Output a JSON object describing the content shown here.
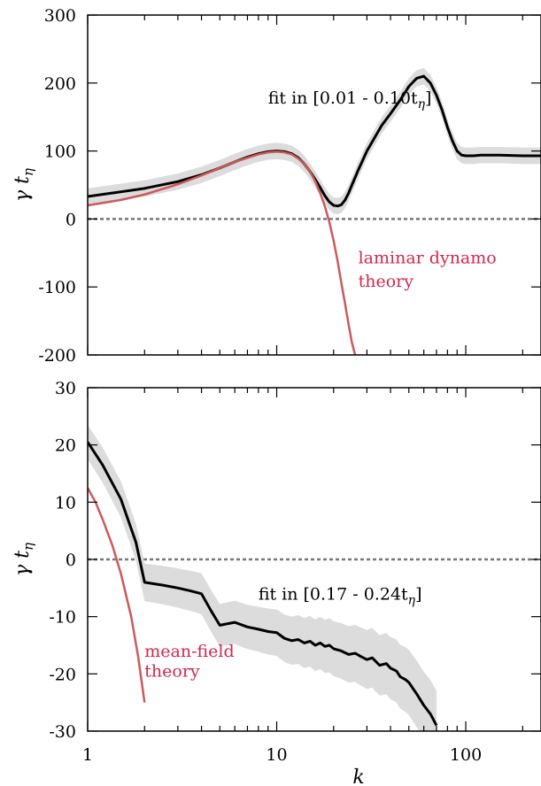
{
  "colors": {
    "black_curve": "#000000",
    "theory_curve": "#cc5a5a",
    "band": "#dcdcdc",
    "zero_line": "#777777",
    "theory_text": "#d0284f"
  },
  "chart_data": [
    {
      "type": "line",
      "x_scale": "log",
      "xlim": [
        1,
        250
      ],
      "ylim": [
        -200,
        300
      ],
      "ylabel": "γ t_η",
      "xlabel": "",
      "x_ticks": [
        "1",
        "10",
        "100"
      ],
      "y_ticks": [
        "300",
        "200",
        "100",
        "0",
        "-100",
        "-200"
      ],
      "zero_line": true,
      "grid": false,
      "annotations": [
        {
          "text": "fit in [0.01 - 0.10t",
          "sub": "η",
          "close": "]",
          "x": 9,
          "y": 170
        },
        {
          "text": "laminar dynamo",
          "x": 27,
          "y": -65,
          "color": "theory"
        },
        {
          "text": "theory",
          "x": 27,
          "y": -100,
          "color": "theory"
        }
      ],
      "series": [
        {
          "kind": "fit",
          "x": [
            1,
            1.5,
            2,
            3,
            4,
            5,
            6,
            7,
            8,
            9,
            10,
            11,
            12,
            13,
            14,
            15,
            16,
            17,
            18,
            19,
            20,
            21,
            22,
            23,
            24,
            25,
            27,
            30,
            33,
            36,
            40,
            45,
            50,
            55,
            60,
            65,
            70,
            75,
            80,
            85,
            90,
            95,
            100,
            110,
            120,
            150,
            200,
            250
          ],
          "y": [
            33,
            40,
            45,
            55,
            65,
            75,
            84,
            91,
            96,
            99,
            100,
            99,
            96,
            90,
            81,
            70,
            58,
            46,
            34,
            25,
            20,
            19,
            21,
            28,
            38,
            50,
            72,
            100,
            120,
            138,
            155,
            175,
            195,
            207,
            210,
            200,
            182,
            160,
            135,
            115,
            100,
            94,
            93,
            93,
            94,
            94,
            93,
            93
          ],
          "band": 12
        },
        {
          "kind": "theory",
          "x": [
            1,
            1.5,
            2,
            3,
            4,
            5,
            6,
            7,
            8,
            9,
            10,
            11,
            12,
            13,
            14,
            15,
            16,
            17,
            18,
            19,
            20,
            21,
            22,
            23,
            24,
            25,
            26
          ],
          "y": [
            20,
            28,
            36,
            51,
            64,
            75,
            84,
            90,
            95,
            98,
            99,
            98,
            95,
            89,
            81,
            70,
            55,
            38,
            18,
            -5,
            -32,
            -62,
            -95,
            -125,
            -155,
            -182,
            -200
          ]
        }
      ]
    },
    {
      "type": "line",
      "x_scale": "log",
      "xlim": [
        1,
        250
      ],
      "ylim": [
        -30,
        30
      ],
      "ylabel": "γ t_η",
      "xlabel": "k",
      "x_ticks": [
        "1",
        "10",
        "100"
      ],
      "y_ticks": [
        "30",
        "20",
        "10",
        "0",
        "-10",
        "-20",
        "-30"
      ],
      "zero_line": true,
      "grid": false,
      "annotations": [
        {
          "text": "fit in [0.17 - 0.24t",
          "sub": "η",
          "close": "]",
          "x": 8,
          "y": -7
        },
        {
          "text": "mean-field",
          "x": 2.0,
          "y": -17
        },
        {
          "text": "theory",
          "x": 2.0,
          "y": -20.5
        }
      ],
      "series": [
        {
          "kind": "fit",
          "x": [
            1,
            1.2,
            1.5,
            1.8,
            2,
            2.5,
            3,
            3.5,
            4,
            4.5,
            5,
            6,
            7,
            8,
            9,
            10,
            11,
            12,
            13,
            14,
            15,
            16,
            17,
            18,
            19,
            20,
            22,
            24,
            26,
            28,
            30,
            32,
            35,
            38,
            40,
            43,
            45,
            48,
            50,
            55,
            60,
            65,
            70
          ],
          "y": [
            20.5,
            16.5,
            10.5,
            3,
            -4,
            -4.5,
            -5,
            -5.5,
            -6,
            -9,
            -11.5,
            -11,
            -11.8,
            -12.2,
            -12.6,
            -12.8,
            -13.8,
            -14.2,
            -14,
            -14.6,
            -14.3,
            -15,
            -14.6,
            -15.2,
            -15,
            -15.6,
            -16,
            -16.6,
            -16.4,
            -17,
            -17.5,
            -17.2,
            -18.5,
            -18.2,
            -19,
            -19.5,
            -20.5,
            -21,
            -21.5,
            -23.5,
            -25.5,
            -27,
            -29
          ]
        },
        {
          "kind": "theory",
          "x": [
            1,
            1.1,
            1.2,
            1.35,
            1.5,
            1.7,
            1.85,
            2
          ],
          "y": [
            12.5,
            10,
            7,
            2.5,
            -2.5,
            -10,
            -17,
            -25
          ]
        }
      ]
    }
  ]
}
